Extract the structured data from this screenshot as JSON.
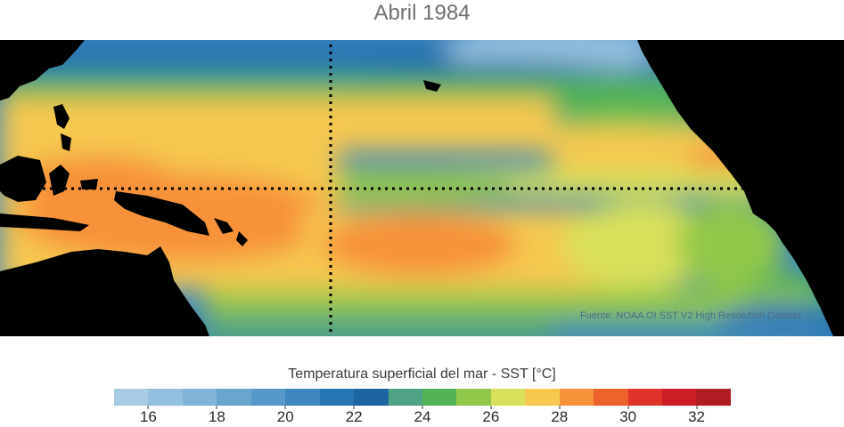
{
  "title": "Abril 1984",
  "source": "Fuente: NOAA OI SST V2 High Resolution Dataset",
  "colorbar": {
    "label": "Temperatura superficial del mar - SST  [°C]",
    "range": [
      15,
      33
    ],
    "colors": [
      "#a6cbe3",
      "#92bfde",
      "#7fb3d7",
      "#6aa5d0",
      "#5698c9",
      "#3f87bf",
      "#2674b2",
      "#1d64a3",
      "#4fa283",
      "#52b356",
      "#92c84a",
      "#d9e05a",
      "#f6c84f",
      "#f7923b",
      "#ee622c",
      "#e0342a",
      "#cc1e26",
      "#b01e23"
    ],
    "ticks": [
      16,
      18,
      20,
      22,
      24,
      26,
      28,
      30,
      32
    ]
  },
  "map": {
    "icons": [
      "land-mask",
      "equator-line",
      "dateline-marker"
    ]
  }
}
